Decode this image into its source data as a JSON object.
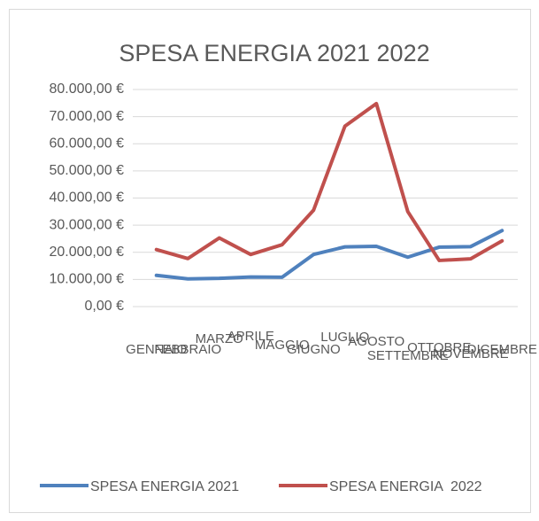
{
  "chart_data": {
    "type": "line",
    "title": "SPESA ENERGIA 2021 2022",
    "categories": [
      "GENNAIO",
      "FEBBRAIO",
      "MARZO",
      "APRILE",
      "MAGGIO",
      "GIUGNO",
      "LUGLIO",
      "AGOSTO",
      "SETTEMBRE",
      "OTTOBRE",
      "NOVEMBRE",
      "DICEMBRE"
    ],
    "series": [
      {
        "name": "SPESA ENERGIA 2021",
        "color": "#4f81bd",
        "values": [
          11500,
          10200,
          10400,
          10900,
          10800,
          19200,
          22000,
          22200,
          18200,
          21900,
          22100,
          28000
        ]
      },
      {
        "name": "SPESA ENERGIA  2022",
        "color": "#c0504d",
        "values": [
          21000,
          17700,
          25300,
          19200,
          22800,
          35500,
          66500,
          74800,
          35000,
          17000,
          17600,
          24200
        ]
      }
    ],
    "ylim": [
      0,
      80000
    ],
    "yticks": [
      {
        "value": 0,
        "label": "0,00 €"
      },
      {
        "value": 10000,
        "label": "10.000,00 €"
      },
      {
        "value": 20000,
        "label": "20.000,00 €"
      },
      {
        "value": 30000,
        "label": "30.000,00 €"
      },
      {
        "value": 40000,
        "label": "40.000,00 €"
      },
      {
        "value": 50000,
        "label": "50.000,00 €"
      },
      {
        "value": 60000,
        "label": "60.000,00 €"
      },
      {
        "value": 70000,
        "label": "70.000,00 €"
      },
      {
        "value": 80000,
        "label": "80.000,00 €"
      }
    ],
    "grid": true,
    "legend": "bottom"
  }
}
